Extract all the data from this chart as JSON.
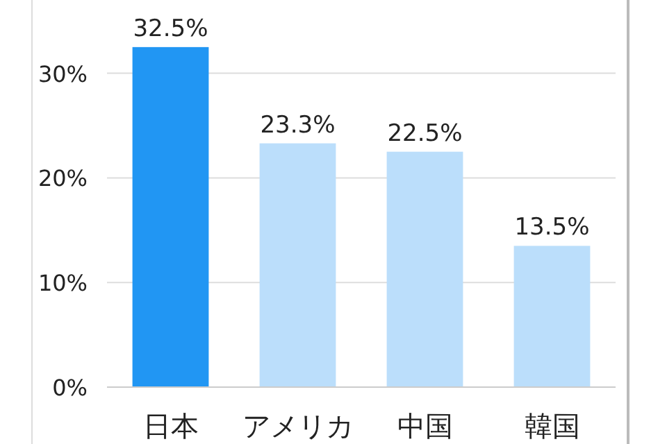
{
  "chart_data": {
    "type": "bar",
    "categories": [
      "日本",
      "アメリカ",
      "中国",
      "韓国"
    ],
    "values": [
      32.5,
      23.3,
      22.5,
      13.5
    ],
    "colors": [
      "#2196f3",
      "#bbdefb",
      "#bbdefb",
      "#bbdefb"
    ],
    "value_labels": [
      "32.5%",
      "23.3%",
      "22.5%",
      "13.5%"
    ],
    "ylim": [
      0,
      37
    ],
    "yticks": [
      {
        "value": 0,
        "label": "0%"
      },
      {
        "value": 10,
        "label": "10%"
      },
      {
        "value": 20,
        "label": "20%"
      },
      {
        "value": 30,
        "label": "30%"
      }
    ],
    "grid": "y"
  }
}
